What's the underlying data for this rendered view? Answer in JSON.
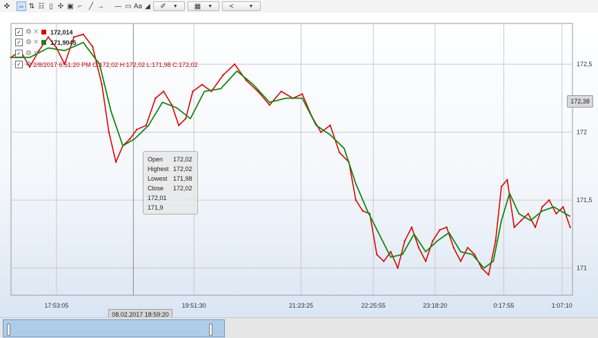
{
  "toolbar": {
    "icons": [
      "crosshair-icon",
      "cursor-icon",
      "scale-icon",
      "grid-icon",
      "document-icon",
      "move-icon",
      "comment-icon",
      "measure-icon",
      "line-icon",
      "arrow-icon",
      "hline-icon",
      "rect-icon",
      "text-icon",
      "shapes-icon",
      "template-icon",
      "nav-icon"
    ],
    "text_tool": "Aa",
    "nav_label": "<"
  },
  "legend": [
    {
      "value": "172,014",
      "color": "#e00000"
    },
    {
      "value": "171,9045",
      "color": "#0a8a0a"
    },
    {
      "value": "",
      "color": ""
    },
    {
      "value": "2/8/2017 6:51:20 PM O:172,02 H:172,02 L:171,98 C:172,02",
      "color": "#cc0000"
    }
  ],
  "tooltip": {
    "rows": [
      {
        "label": "Open",
        "value": "172,02"
      },
      {
        "label": "Highest",
        "value": "172,02"
      },
      {
        "label": "Lowest",
        "value": "171,98"
      },
      {
        "label": "Close",
        "value": "172,02"
      },
      {
        "label": "172,01",
        "value": ""
      },
      {
        "label": "171,9",
        "value": ""
      }
    ]
  },
  "price_tag": "172,38",
  "time_tag": "08.02.2017 18:59:20",
  "colors": {
    "price": "#e00000",
    "ma": "#0a8a0a",
    "grid": "#c8c8c8"
  },
  "chart_data": {
    "type": "line",
    "y_ticks": [
      "172,5",
      "172",
      "171,5",
      "171"
    ],
    "x_ticks": [
      "17:53:05",
      "19:51:30",
      "21:23:25",
      "22:25:55",
      "23:18:20",
      "0:17:55",
      "1:07:10"
    ],
    "ylim": [
      170.8,
      172.8
    ],
    "grid": true,
    "series": [
      {
        "name": "172,014",
        "color": "#e00000",
        "points": [
          [
            "17:14",
            172.55
          ],
          [
            "17:22",
            172.6
          ],
          [
            "17:30",
            172.48
          ],
          [
            "17:38",
            172.6
          ],
          [
            "17:46",
            172.7
          ],
          [
            "17:53",
            172.62
          ],
          [
            "18:00",
            172.5
          ],
          [
            "18:08",
            172.7
          ],
          [
            "18:16",
            172.72
          ],
          [
            "18:24",
            172.63
          ],
          [
            "18:32",
            172.35
          ],
          [
            "18:38",
            172.0
          ],
          [
            "18:44",
            171.78
          ],
          [
            "18:50",
            171.9
          ],
          [
            "18:56",
            171.95
          ],
          [
            "19:02",
            172.02
          ],
          [
            "19:10",
            172.05
          ],
          [
            "19:18",
            172.25
          ],
          [
            "19:25",
            172.3
          ],
          [
            "19:32",
            172.2
          ],
          [
            "19:38",
            172.05
          ],
          [
            "19:44",
            172.1
          ],
          [
            "19:50",
            172.3
          ],
          [
            "19:58",
            172.35
          ],
          [
            "20:06",
            172.3
          ],
          [
            "20:16",
            172.42
          ],
          [
            "20:26",
            172.5
          ],
          [
            "20:36",
            172.38
          ],
          [
            "20:46",
            172.3
          ],
          [
            "20:56",
            172.2
          ],
          [
            "21:06",
            172.3
          ],
          [
            "21:16",
            172.25
          ],
          [
            "21:24",
            172.28
          ],
          [
            "21:32",
            172.12
          ],
          [
            "21:40",
            172.0
          ],
          [
            "21:48",
            172.05
          ],
          [
            "21:56",
            171.85
          ],
          [
            "22:04",
            171.78
          ],
          [
            "22:10",
            171.5
          ],
          [
            "22:16",
            171.42
          ],
          [
            "22:22",
            171.4
          ],
          [
            "22:28",
            171.1
          ],
          [
            "22:34",
            171.05
          ],
          [
            "22:40",
            171.12
          ],
          [
            "22:46",
            171.0
          ],
          [
            "22:52",
            171.2
          ],
          [
            "22:58",
            171.3
          ],
          [
            "23:04",
            171.15
          ],
          [
            "23:10",
            171.05
          ],
          [
            "23:16",
            171.2
          ],
          [
            "23:22",
            171.28
          ],
          [
            "23:28",
            171.3
          ],
          [
            "23:34",
            171.15
          ],
          [
            "23:40",
            171.05
          ],
          [
            "23:46",
            171.15
          ],
          [
            "23:52",
            171.1
          ],
          [
            "23:58",
            171.0
          ],
          [
            "0:04",
            170.95
          ],
          [
            "0:10",
            171.2
          ],
          [
            "0:15",
            171.6
          ],
          [
            "0:20",
            171.65
          ],
          [
            "0:26",
            171.3
          ],
          [
            "0:32",
            171.35
          ],
          [
            "0:38",
            171.4
          ],
          [
            "0:44",
            171.3
          ],
          [
            "0:50",
            171.45
          ],
          [
            "0:56",
            171.5
          ],
          [
            "1:02",
            171.4
          ],
          [
            "1:08",
            171.45
          ],
          [
            "1:14",
            171.3
          ]
        ]
      },
      {
        "name": "171,9045",
        "color": "#0a8a0a",
        "points": [
          [
            "17:14",
            172.55
          ],
          [
            "17:30",
            172.55
          ],
          [
            "17:46",
            172.62
          ],
          [
            "18:00",
            172.6
          ],
          [
            "18:16",
            172.66
          ],
          [
            "18:30",
            172.5
          ],
          [
            "18:40",
            172.15
          ],
          [
            "18:50",
            171.9
          ],
          [
            "19:00",
            171.95
          ],
          [
            "19:12",
            172.05
          ],
          [
            "19:24",
            172.22
          ],
          [
            "19:36",
            172.18
          ],
          [
            "19:48",
            172.1
          ],
          [
            "20:00",
            172.3
          ],
          [
            "20:14",
            172.32
          ],
          [
            "20:28",
            172.45
          ],
          [
            "20:42",
            172.35
          ],
          [
            "20:56",
            172.22
          ],
          [
            "21:10",
            172.25
          ],
          [
            "21:24",
            172.25
          ],
          [
            "21:36",
            172.05
          ],
          [
            "21:48",
            171.98
          ],
          [
            "22:00",
            171.88
          ],
          [
            "22:10",
            171.62
          ],
          [
            "22:20",
            171.42
          ],
          [
            "22:30",
            171.25
          ],
          [
            "22:40",
            171.08
          ],
          [
            "22:50",
            171.1
          ],
          [
            "23:00",
            171.25
          ],
          [
            "23:10",
            171.12
          ],
          [
            "23:20",
            171.2
          ],
          [
            "23:30",
            171.26
          ],
          [
            "23:40",
            171.12
          ],
          [
            "23:50",
            171.1
          ],
          [
            "0:00",
            171.0
          ],
          [
            "0:08",
            171.05
          ],
          [
            "0:15",
            171.35
          ],
          [
            "0:22",
            171.55
          ],
          [
            "0:30",
            171.4
          ],
          [
            "0:40",
            171.35
          ],
          [
            "0:50",
            171.42
          ],
          [
            "1:00",
            171.45
          ],
          [
            "1:14",
            171.38
          ]
        ]
      }
    ]
  }
}
